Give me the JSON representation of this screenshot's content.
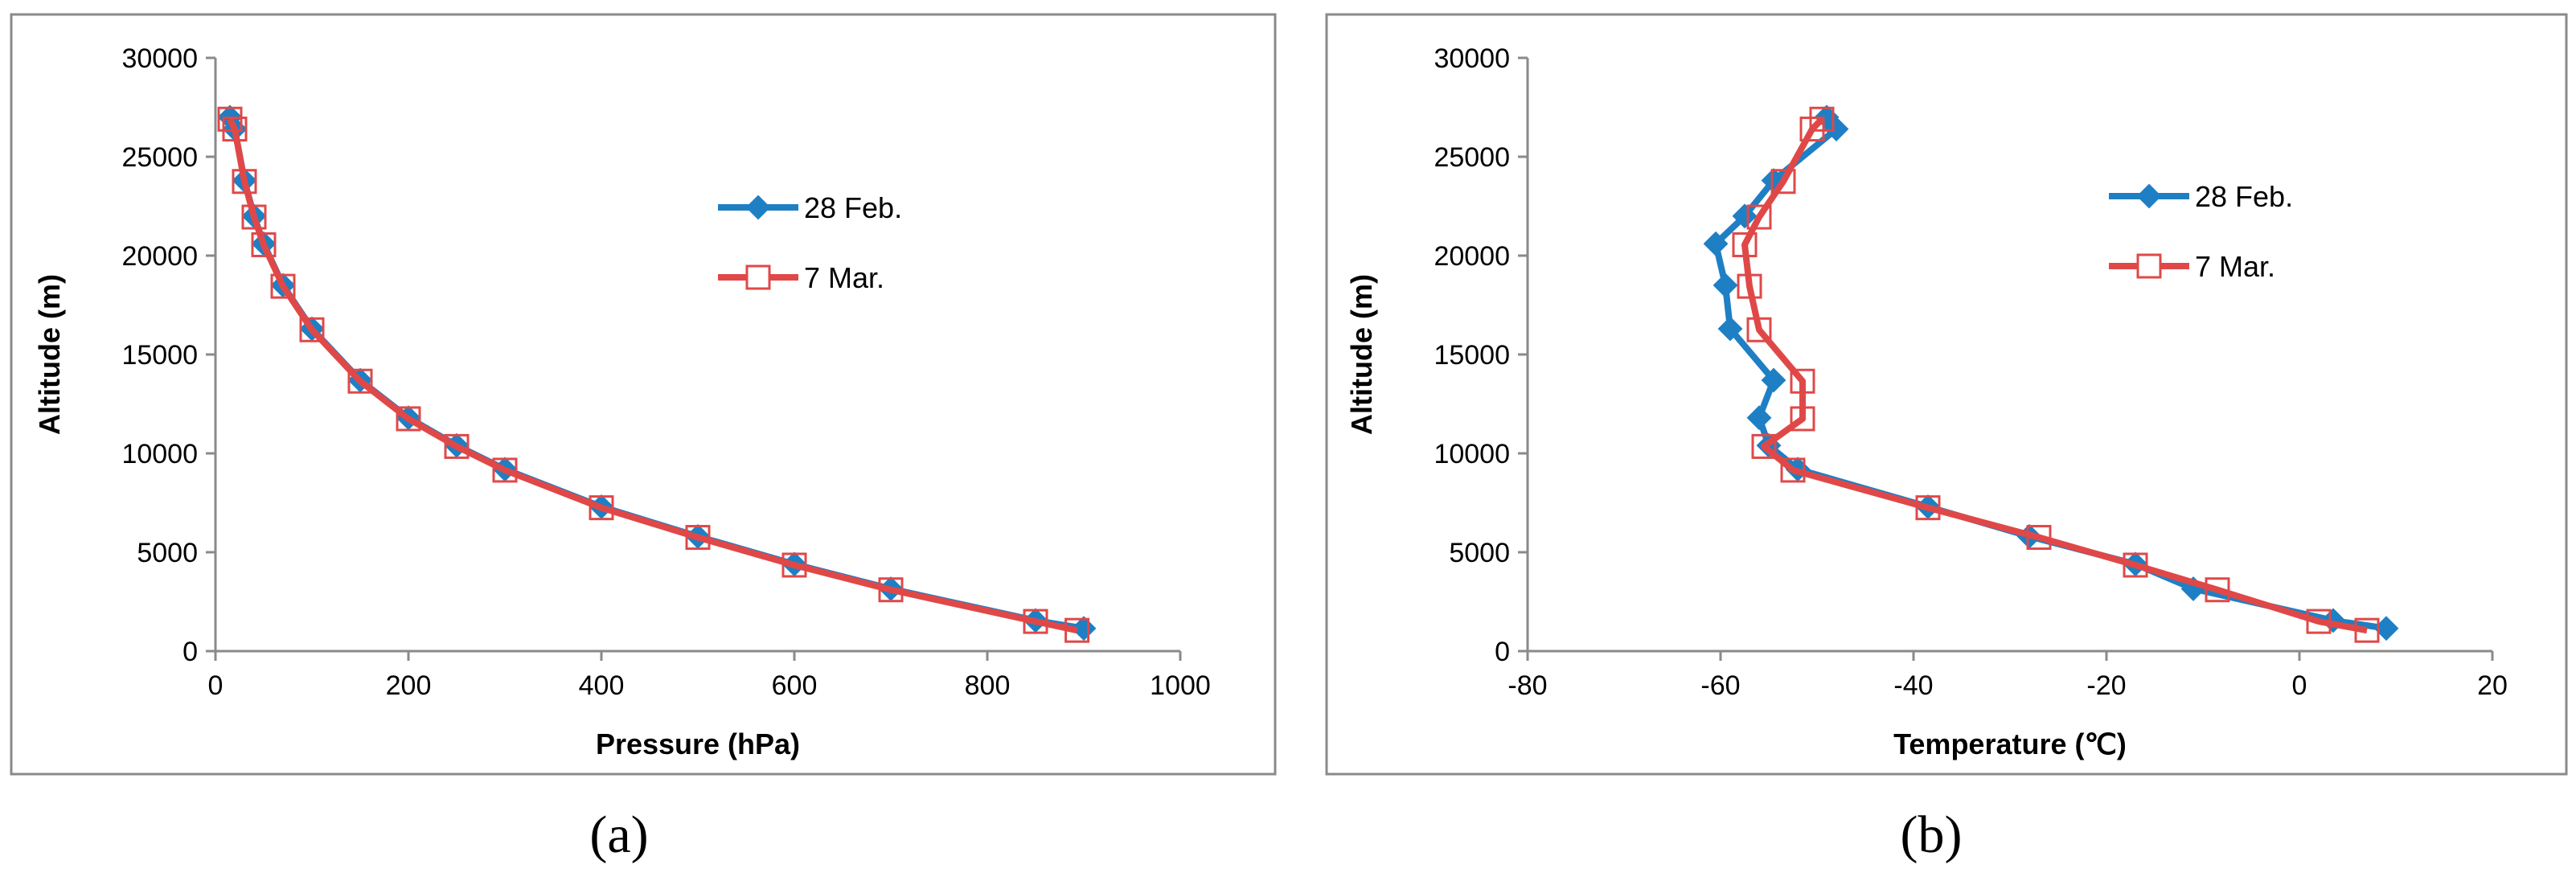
{
  "chart_data": [
    {
      "type": "line",
      "panel_label": "(a)",
      "title": "",
      "xlabel": "Pressure (hPa)",
      "ylabel": "Altitude (m)",
      "xlim": [
        0,
        1000
      ],
      "ylim": [
        0,
        30000
      ],
      "x_ticks": [
        "0",
        "200",
        "400",
        "600",
        "800",
        "1000"
      ],
      "y_ticks": [
        "0",
        "5000",
        "10000",
        "15000",
        "20000",
        "25000",
        "30000"
      ],
      "grid": false,
      "legend_position": "right-middle",
      "series": [
        {
          "name": "28 Feb.",
          "color": "#1f7fc4",
          "marker": "diamond",
          "points": [
            [
              900,
              1150
            ],
            [
              850,
              1550
            ],
            [
              700,
              3150
            ],
            [
              600,
              4400
            ],
            [
              500,
              5800
            ],
            [
              400,
              7300
            ],
            [
              300,
              9200
            ],
            [
              250,
              10400
            ],
            [
              200,
              11800
            ],
            [
              150,
              13700
            ],
            [
              100,
              16300
            ],
            [
              70,
              18500
            ],
            [
              50,
              20600
            ],
            [
              40,
              22000
            ],
            [
              30,
              23800
            ],
            [
              20,
              26400
            ],
            [
              15,
              27000
            ]
          ]
        },
        {
          "name": "7 Mar.",
          "color": "#e04848",
          "marker": "open-square",
          "points": [
            [
              893,
              1050
            ],
            [
              850,
              1500
            ],
            [
              700,
              3100
            ],
            [
              600,
              4350
            ],
            [
              500,
              5750
            ],
            [
              400,
              7250
            ],
            [
              300,
              9150
            ],
            [
              250,
              10350
            ],
            [
              200,
              11750
            ],
            [
              150,
              13650
            ],
            [
              100,
              16250
            ],
            [
              70,
              18450
            ],
            [
              50,
              20550
            ],
            [
              40,
              21950
            ],
            [
              30,
              23750
            ],
            [
              20,
              26400
            ],
            [
              15,
              26900
            ]
          ]
        }
      ]
    },
    {
      "type": "line",
      "panel_label": "(b)",
      "title": "",
      "xlabel": "Temperature (℃)",
      "ylabel": "Altitude (m)",
      "xlim": [
        -80,
        20
      ],
      "ylim": [
        0,
        30000
      ],
      "x_ticks": [
        "-80",
        "-60",
        "-40",
        "-20",
        "0",
        "20"
      ],
      "y_ticks": [
        "0",
        "5000",
        "10000",
        "15000",
        "20000",
        "25000",
        "30000"
      ],
      "grid": false,
      "legend_position": "right-top",
      "series": [
        {
          "name": "28 Feb.",
          "color": "#1f7fc4",
          "marker": "diamond",
          "points": [
            [
              9,
              1150
            ],
            [
              3.5,
              1550
            ],
            [
              -11,
              3150
            ],
            [
              -17,
              4400
            ],
            [
              -28,
              5800
            ],
            [
              -38.5,
              7300
            ],
            [
              -52,
              9200
            ],
            [
              -55,
              10400
            ],
            [
              -56,
              11800
            ],
            [
              -54.5,
              13700
            ],
            [
              -59,
              16300
            ],
            [
              -59.5,
              18500
            ],
            [
              -60.5,
              20600
            ],
            [
              -57.5,
              22000
            ],
            [
              -54.5,
              23800
            ],
            [
              -48,
              26400
            ],
            [
              -49,
              27000
            ]
          ]
        },
        {
          "name": "7 Mar.",
          "color": "#e04848",
          "marker": "open-square",
          "points": [
            [
              7,
              1050
            ],
            [
              2,
              1500
            ],
            [
              -8.5,
              3100
            ],
            [
              -17,
              4350
            ],
            [
              -27,
              5750
            ],
            [
              -38.5,
              7250
            ],
            [
              -52.5,
              9150
            ],
            [
              -55.5,
              10350
            ],
            [
              -51.5,
              11750
            ],
            [
              -51.5,
              13650
            ],
            [
              -56,
              16250
            ],
            [
              -57,
              18450
            ],
            [
              -57.5,
              20550
            ],
            [
              -56,
              21950
            ],
            [
              -53.5,
              23750
            ],
            [
              -50.5,
              26400
            ],
            [
              -49.5,
              26900
            ]
          ]
        }
      ]
    }
  ]
}
